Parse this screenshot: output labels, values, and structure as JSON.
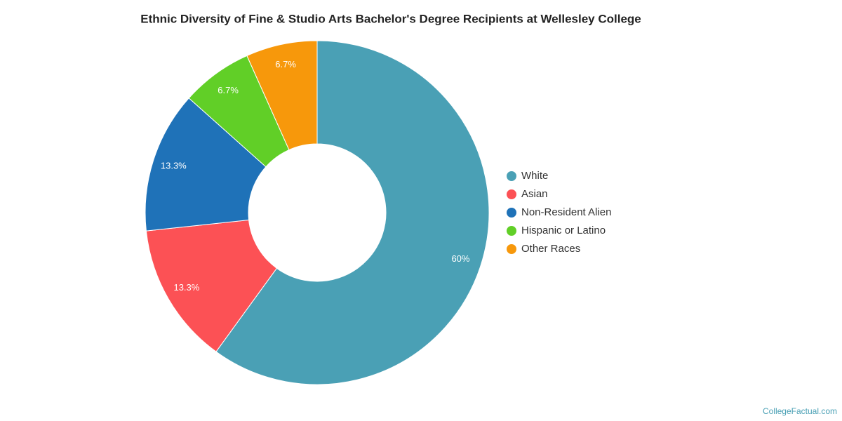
{
  "chart_data": {
    "type": "donut",
    "title": "Ethnic Diversity of Fine & Studio Arts Bachelor's Degree Recipients at Wellesley College",
    "categories": [
      "White",
      "Asian",
      "Non-Resident Alien",
      "Hispanic or Latino",
      "Other Races"
    ],
    "values": [
      60,
      13.3,
      13.3,
      6.7,
      6.7
    ],
    "value_labels": [
      "60%",
      "13.3%",
      "13.3%",
      "6.7%",
      "6.7%"
    ],
    "colors": [
      "#4aa0b5",
      "#fc5155",
      "#1f72b8",
      "#61cf27",
      "#f7980b"
    ],
    "legend": "right",
    "source": "CollegeFactual.com"
  }
}
